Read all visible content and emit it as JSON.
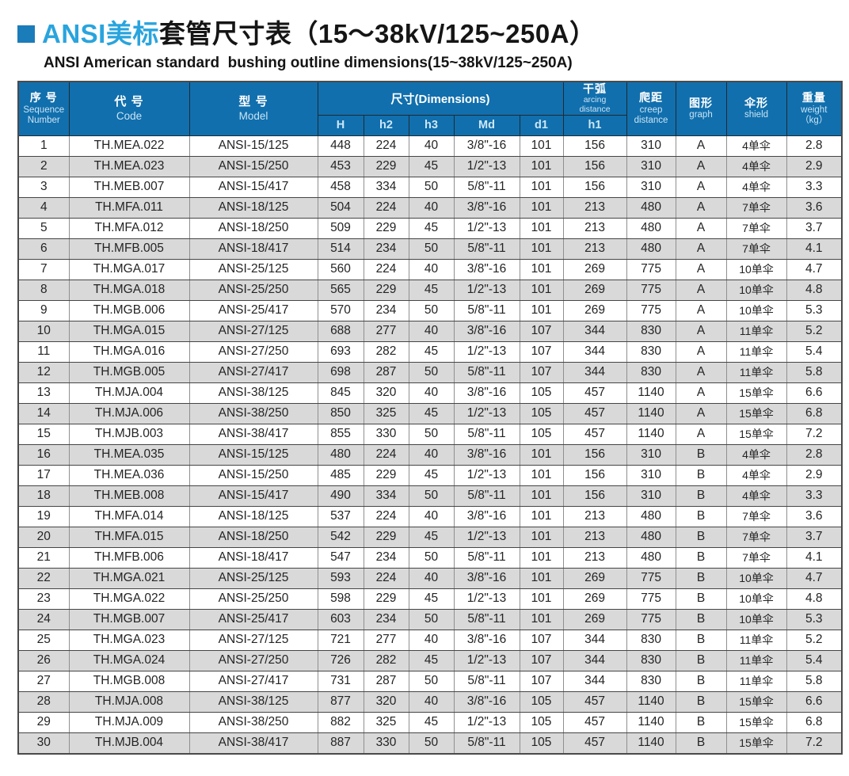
{
  "colors": {
    "header_bg": "#116fad",
    "title_accent_blue": "#29a4dd",
    "bullet_blue": "#1b7cba",
    "stripe_gray": "#d9d9d9"
  },
  "title": {
    "accent": "ANSI美标",
    "rest": "套管尺寸表（15～38kV/125~250A）",
    "subtitle": "ANSI American standard  bushing outline dimensions(15~38kV/125~250A)"
  },
  "header": {
    "seq_cn": "序 号",
    "seq_en1": "Sequence",
    "seq_en2": "Number",
    "code_cn": "代 号",
    "code_en": "Code",
    "model_cn": "型 号",
    "model_en": "Model",
    "dims": "尺寸(Dimensions)",
    "h": "H",
    "h2": "h2",
    "h3": "h3",
    "md": "Md",
    "d1": "d1",
    "arc_cn": "干弧",
    "arc_en1": "arcing",
    "arc_en2": "distance",
    "arc_sub": "h1",
    "creep_cn": "爬距",
    "creep_en1": "creep",
    "creep_en2": "distance",
    "graph_cn": "图形",
    "graph_en": "graph",
    "shield_cn": "伞形",
    "shield_en": "shield",
    "weight_cn": "重量",
    "weight_en": "weight",
    "weight_unit": "（kg）"
  },
  "table": {
    "col_keys": [
      "seq",
      "code",
      "model",
      "H",
      "h2",
      "h3",
      "Md",
      "d1",
      "h1",
      "creep",
      "graph",
      "shield",
      "weight"
    ],
    "rows": [
      [
        "1",
        "TH.MEA.022",
        "ANSI-15/125",
        "448",
        "224",
        "40",
        "3/8\"-16",
        "101",
        "156",
        "310",
        "A",
        "4单伞",
        "2.8"
      ],
      [
        "2",
        "TH.MEA.023",
        "ANSI-15/250",
        "453",
        "229",
        "45",
        "1/2\"-13",
        "101",
        "156",
        "310",
        "A",
        "4单伞",
        "2.9"
      ],
      [
        "3",
        "TH.MEB.007",
        "ANSI-15/417",
        "458",
        "334",
        "50",
        "5/8\"-11",
        "101",
        "156",
        "310",
        "A",
        "4单伞",
        "3.3"
      ],
      [
        "4",
        "TH.MFA.011",
        "ANSI-18/125",
        "504",
        "224",
        "40",
        "3/8\"-16",
        "101",
        "213",
        "480",
        "A",
        "7单伞",
        "3.6"
      ],
      [
        "5",
        "TH.MFA.012",
        "ANSI-18/250",
        "509",
        "229",
        "45",
        "1/2\"-13",
        "101",
        "213",
        "480",
        "A",
        "7单伞",
        "3.7"
      ],
      [
        "6",
        "TH.MFB.005",
        "ANSI-18/417",
        "514",
        "234",
        "50",
        "5/8\"-11",
        "101",
        "213",
        "480",
        "A",
        "7单伞",
        "4.1"
      ],
      [
        "7",
        "TH.MGA.017",
        "ANSI-25/125",
        "560",
        "224",
        "40",
        "3/8\"-16",
        "101",
        "269",
        "775",
        "A",
        "10单伞",
        "4.7"
      ],
      [
        "8",
        "TH.MGA.018",
        "ANSI-25/250",
        "565",
        "229",
        "45",
        "1/2\"-13",
        "101",
        "269",
        "775",
        "A",
        "10单伞",
        "4.8"
      ],
      [
        "9",
        "TH.MGB.006",
        "ANSI-25/417",
        "570",
        "234",
        "50",
        "5/8\"-11",
        "101",
        "269",
        "775",
        "A",
        "10单伞",
        "5.3"
      ],
      [
        "10",
        "TH.MGA.015",
        "ANSI-27/125",
        "688",
        "277",
        "40",
        "3/8\"-16",
        "107",
        "344",
        "830",
        "A",
        "11单伞",
        "5.2"
      ],
      [
        "11",
        "TH.MGA.016",
        "ANSI-27/250",
        "693",
        "282",
        "45",
        "1/2\"-13",
        "107",
        "344",
        "830",
        "A",
        "11单伞",
        "5.4"
      ],
      [
        "12",
        "TH.MGB.005",
        "ANSI-27/417",
        "698",
        "287",
        "50",
        "5/8\"-11",
        "107",
        "344",
        "830",
        "A",
        "11单伞",
        "5.8"
      ],
      [
        "13",
        "TH.MJA.004",
        "ANSI-38/125",
        "845",
        "320",
        "40",
        "3/8\"-16",
        "105",
        "457",
        "1140",
        "A",
        "15单伞",
        "6.6"
      ],
      [
        "14",
        "TH.MJA.006",
        "ANSI-38/250",
        "850",
        "325",
        "45",
        "1/2\"-13",
        "105",
        "457",
        "1140",
        "A",
        "15单伞",
        "6.8"
      ],
      [
        "15",
        "TH.MJB.003",
        "ANSI-38/417",
        "855",
        "330",
        "50",
        "5/8\"-11",
        "105",
        "457",
        "1140",
        "A",
        "15单伞",
        "7.2"
      ],
      [
        "16",
        "TH.MEA.035",
        "ANSI-15/125",
        "480",
        "224",
        "40",
        "3/8\"-16",
        "101",
        "156",
        "310",
        "B",
        "4单伞",
        "2.8"
      ],
      [
        "17",
        "TH.MEA.036",
        "ANSI-15/250",
        "485",
        "229",
        "45",
        "1/2\"-13",
        "101",
        "156",
        "310",
        "B",
        "4单伞",
        "2.9"
      ],
      [
        "18",
        "TH.MEB.008",
        "ANSI-15/417",
        "490",
        "334",
        "50",
        "5/8\"-11",
        "101",
        "156",
        "310",
        "B",
        "4单伞",
        "3.3"
      ],
      [
        "19",
        "TH.MFA.014",
        "ANSI-18/125",
        "537",
        "224",
        "40",
        "3/8\"-16",
        "101",
        "213",
        "480",
        "B",
        "7单伞",
        "3.6"
      ],
      [
        "20",
        "TH.MFA.015",
        "ANSI-18/250",
        "542",
        "229",
        "45",
        "1/2\"-13",
        "101",
        "213",
        "480",
        "B",
        "7单伞",
        "3.7"
      ],
      [
        "21",
        "TH.MFB.006",
        "ANSI-18/417",
        "547",
        "234",
        "50",
        "5/8\"-11",
        "101",
        "213",
        "480",
        "B",
        "7单伞",
        "4.1"
      ],
      [
        "22",
        "TH.MGA.021",
        "ANSI-25/125",
        "593",
        "224",
        "40",
        "3/8\"-16",
        "101",
        "269",
        "775",
        "B",
        "10单伞",
        "4.7"
      ],
      [
        "23",
        "TH.MGA.022",
        "ANSI-25/250",
        "598",
        "229",
        "45",
        "1/2\"-13",
        "101",
        "269",
        "775",
        "B",
        "10单伞",
        "4.8"
      ],
      [
        "24",
        "TH.MGB.007",
        "ANSI-25/417",
        "603",
        "234",
        "50",
        "5/8\"-11",
        "101",
        "269",
        "775",
        "B",
        "10单伞",
        "5.3"
      ],
      [
        "25",
        "TH.MGA.023",
        "ANSI-27/125",
        "721",
        "277",
        "40",
        "3/8\"-16",
        "107",
        "344",
        "830",
        "B",
        "11单伞",
        "5.2"
      ],
      [
        "26",
        "TH.MGA.024",
        "ANSI-27/250",
        "726",
        "282",
        "45",
        "1/2\"-13",
        "107",
        "344",
        "830",
        "B",
        "11单伞",
        "5.4"
      ],
      [
        "27",
        "TH.MGB.008",
        "ANSI-27/417",
        "731",
        "287",
        "50",
        "5/8\"-11",
        "107",
        "344",
        "830",
        "B",
        "11单伞",
        "5.8"
      ],
      [
        "28",
        "TH.MJA.008",
        "ANSI-38/125",
        "877",
        "320",
        "40",
        "3/8\"-16",
        "105",
        "457",
        "1140",
        "B",
        "15单伞",
        "6.6"
      ],
      [
        "29",
        "TH.MJA.009",
        "ANSI-38/250",
        "882",
        "325",
        "45",
        "1/2\"-13",
        "105",
        "457",
        "1140",
        "B",
        "15单伞",
        "6.8"
      ],
      [
        "30",
        "TH.MJB.004",
        "ANSI-38/417",
        "887",
        "330",
        "50",
        "5/8\"-11",
        "105",
        "457",
        "1140",
        "B",
        "15单伞",
        "7.2"
      ]
    ]
  }
}
